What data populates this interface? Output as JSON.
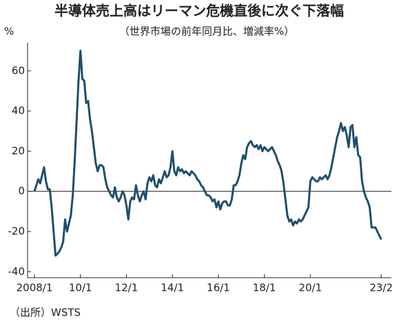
{
  "chart_data": {
    "type": "line",
    "title": "半導体売上高はリーマン危機直後に次ぐ下落幅",
    "subtitle": "（世界市場の前年同月比、増減率%）",
    "y_label": "%",
    "source": "（出所）WSTS",
    "categories": [
      "2008/1",
      null,
      null,
      null,
      null,
      null,
      null,
      null,
      null,
      null,
      null,
      null,
      null,
      null,
      null,
      null,
      null,
      null,
      null,
      null,
      null,
      null,
      null,
      null,
      "10/1",
      null,
      null,
      null,
      null,
      null,
      null,
      null,
      null,
      null,
      null,
      null,
      null,
      null,
      null,
      null,
      null,
      null,
      null,
      null,
      null,
      null,
      null,
      null,
      "12/1",
      null,
      null,
      null,
      null,
      null,
      null,
      null,
      null,
      null,
      null,
      null,
      null,
      null,
      null,
      null,
      null,
      null,
      null,
      null,
      null,
      null,
      null,
      null,
      "14/1",
      null,
      null,
      null,
      null,
      null,
      null,
      null,
      null,
      null,
      null,
      null,
      null,
      null,
      null,
      null,
      null,
      null,
      null,
      null,
      null,
      null,
      null,
      null,
      "16/1",
      null,
      null,
      null,
      null,
      null,
      null,
      null,
      null,
      null,
      null,
      null,
      null,
      null,
      null,
      null,
      null,
      null,
      null,
      null,
      null,
      null,
      null,
      null,
      "18/1",
      null,
      null,
      null,
      null,
      null,
      null,
      null,
      null,
      null,
      null,
      null,
      null,
      null,
      null,
      null,
      null,
      null,
      null,
      null,
      null,
      null,
      null,
      null,
      "20/1",
      null,
      null,
      null,
      null,
      null,
      null,
      null,
      null,
      null,
      null,
      null,
      null,
      null,
      null,
      null,
      null,
      null,
      null,
      null,
      null,
      null,
      null,
      null,
      null,
      null,
      null,
      null,
      null,
      null,
      null,
      null,
      null,
      null,
      null,
      null,
      null,
      "23/2"
    ],
    "series": [
      {
        "color": "#1d4e6b",
        "values": [
          0,
          3,
          6,
          4,
          8,
          12,
          5,
          1,
          1,
          -8,
          -20,
          -32,
          -31,
          -30,
          -28,
          -25,
          -14,
          -20,
          -16,
          -12,
          -2,
          15,
          35,
          55,
          70,
          56,
          55,
          44,
          45,
          36,
          30,
          22,
          14,
          10,
          13,
          13,
          12,
          6,
          2,
          0,
          -2,
          -3,
          2,
          -3,
          -5,
          -3,
          0,
          -2,
          -7,
          -14,
          -5,
          -3,
          -4,
          3,
          -2,
          -5,
          -2,
          0,
          -4,
          4,
          7,
          5,
          8,
          3,
          2,
          6,
          4,
          7,
          10,
          7,
          8,
          12,
          20,
          10,
          8,
          12,
          10,
          11,
          9,
          10,
          9,
          8,
          10,
          9,
          8,
          6,
          5,
          3,
          2,
          0,
          -2,
          -2,
          -3,
          -5,
          -4,
          -8,
          -5,
          -9,
          -6,
          -5,
          -5,
          -7,
          -7,
          -4,
          3,
          3,
          5,
          8,
          14,
          18,
          16,
          22,
          24,
          25,
          23,
          22,
          23,
          21,
          23,
          20,
          22,
          21,
          20,
          21,
          22,
          20,
          18,
          15,
          13,
          10,
          4,
          -4,
          -12,
          -15,
          -14,
          -17,
          -15,
          -16,
          -14,
          -15,
          -14,
          -12,
          -10,
          -8,
          5,
          7,
          6,
          5,
          5,
          7,
          6,
          7,
          8,
          6,
          8,
          12,
          17,
          22,
          27,
          30,
          34,
          30,
          32,
          28,
          22,
          32,
          33,
          22,
          27,
          18,
          17,
          5,
          0,
          -3,
          -5,
          -8,
          -18,
          -18,
          -18,
          -20,
          -22,
          -24
        ]
      }
    ],
    "ylim": [
      -43,
      74
    ],
    "yticks": [
      60,
      40,
      20,
      0,
      -20,
      -40
    ]
  }
}
